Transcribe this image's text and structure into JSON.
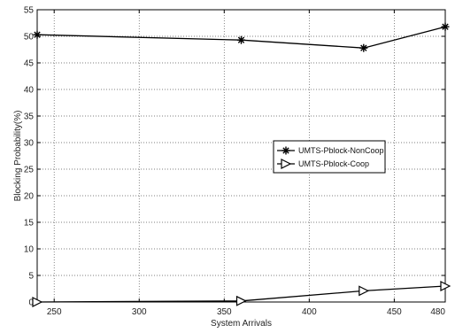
{
  "chart_data": {
    "type": "line",
    "xlabel": "System Arrivals",
    "ylabel": "Blocking Probability(%)",
    "xlim": [
      240,
      480
    ],
    "ylim": [
      0,
      55
    ],
    "xticks": [
      250,
      300,
      350,
      400,
      450,
      480
    ],
    "yticks": [
      0,
      5,
      10,
      15,
      20,
      25,
      30,
      35,
      40,
      45,
      50,
      55
    ],
    "grid": true,
    "legend_position": "center-right",
    "series": [
      {
        "name": "UMTS-Pblock-NonCoop",
        "marker": "asterisk",
        "color": "#000000",
        "x": [
          240,
          360,
          432,
          480
        ],
        "y": [
          50.3,
          49.3,
          47.8,
          51.8
        ]
      },
      {
        "name": "UMTS-Pblock-Coop",
        "marker": "triangle-right",
        "color": "#000000",
        "x": [
          240,
          360,
          432,
          480
        ],
        "y": [
          0.0,
          0.2,
          2.1,
          3.0
        ]
      }
    ]
  }
}
